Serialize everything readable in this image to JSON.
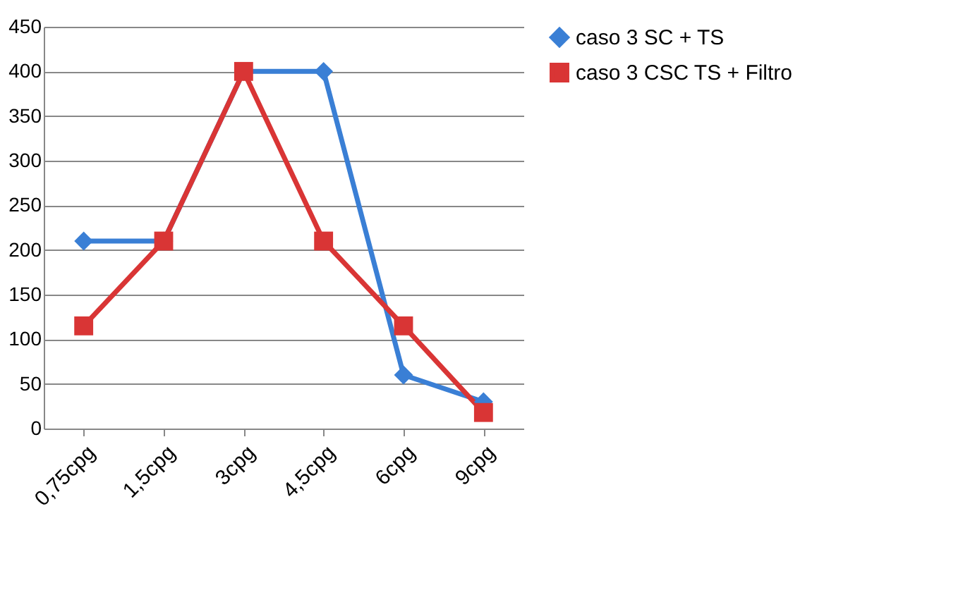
{
  "chart_data": {
    "type": "line",
    "categories": [
      "0,75cpg",
      "1,5cpg",
      "3cpg",
      "4,5cpg",
      "6cpg",
      "9cpg"
    ],
    "series": [
      {
        "name": "caso 3 SC + TS",
        "color": "#3a7fd5",
        "marker": "diamond",
        "values": [
          210,
          210,
          400,
          400,
          60,
          30
        ]
      },
      {
        "name": "caso 3 CSC TS + Filtro",
        "color": "#d93535",
        "marker": "square",
        "values": [
          115,
          210,
          400,
          210,
          115,
          18
        ]
      }
    ],
    "ylim": [
      0,
      450
    ],
    "yticks": [
      0,
      50,
      100,
      150,
      200,
      250,
      300,
      350,
      400,
      450
    ],
    "grid": "y",
    "legend": "right",
    "line_style": "solid"
  }
}
